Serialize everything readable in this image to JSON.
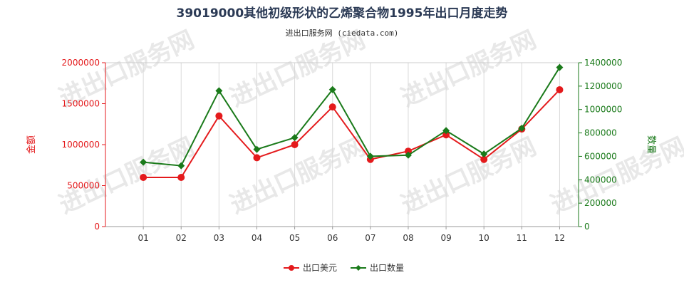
{
  "chart_data": {
    "type": "line",
    "title": "39019000其他初级形状的乙烯聚合物1995年出口月度走势",
    "subtitle": "进出口服务网 (ciedata.com)",
    "categories": [
      "01",
      "02",
      "03",
      "04",
      "05",
      "06",
      "07",
      "08",
      "09",
      "10",
      "11",
      "12"
    ],
    "ylabel_left": "金额",
    "ylabel_right": "数量",
    "ylim_left": [
      0,
      2000000
    ],
    "ylim_right": [
      0,
      1400000
    ],
    "yticks_left": [
      "0",
      "500000",
      "1000000",
      "1500000",
      "2000000"
    ],
    "yticks_right": [
      "0",
      "200000",
      "400000",
      "600000",
      "800000",
      "1000000",
      "1200000",
      "1400000"
    ],
    "grid": "vertical",
    "legend_placement": "bottom-center",
    "series": [
      {
        "name": "出口美元",
        "axis": "left",
        "color": "#e41a1c",
        "values": [
          600000,
          600000,
          1350000,
          840000,
          1000000,
          1460000,
          820000,
          920000,
          1120000,
          820000,
          1190000,
          1670000
        ]
      },
      {
        "name": "出口数量",
        "axis": "right",
        "color": "#1a7a1a",
        "values": [
          550000,
          520000,
          1160000,
          660000,
          760000,
          1170000,
          600000,
          610000,
          820000,
          620000,
          840000,
          1360000
        ]
      }
    ],
    "watermark": "进出口服务网"
  }
}
